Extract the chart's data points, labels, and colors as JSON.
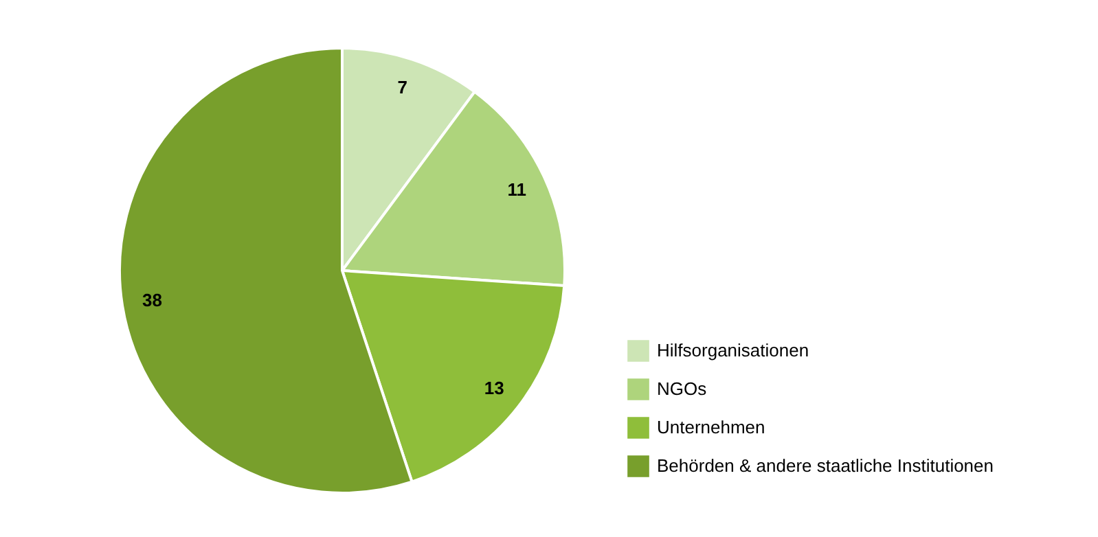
{
  "chart_data": {
    "type": "pie",
    "categories": [
      "Hilfsorganisationen",
      "NGOs",
      "Unternehmen",
      "Behörden & andere staatliche Institutionen"
    ],
    "values": [
      7,
      11,
      13,
      38
    ],
    "colors": [
      "#cde5b5",
      "#aed47c",
      "#8fbe3a",
      "#789f2c"
    ],
    "data_labels": true,
    "legend": "right"
  }
}
